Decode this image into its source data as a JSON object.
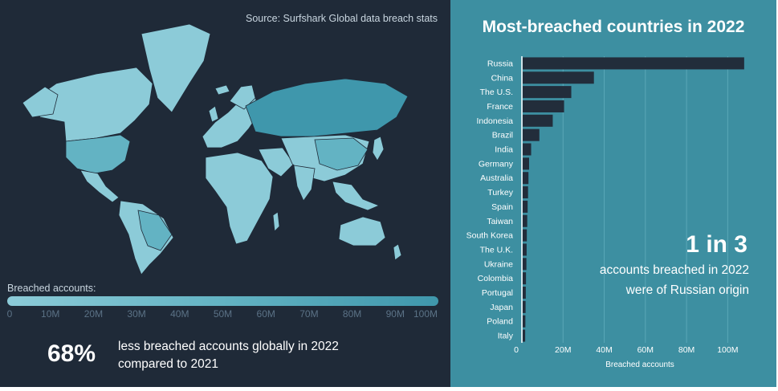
{
  "source": "Source: Surfshark Global data breach stats",
  "map": {
    "legend_label": "Breached accounts:",
    "legend_ticks": [
      "0",
      "10M",
      "20M",
      "30M",
      "40M",
      "50M",
      "60M",
      "70M",
      "80M",
      "90M",
      "100M"
    ],
    "colors": {
      "ocean": "#1f2a38",
      "land_low": "#8ccbd8",
      "land_mid": "#63b3c3",
      "land_high": "#3f97ac",
      "border": "#1f2a38"
    }
  },
  "stat": {
    "big": "68%",
    "text": "less breached accounts globally in 2022 compared to 2021"
  },
  "callout": {
    "big": "1 in 3",
    "text": "accounts breached in 2022 were of Russian origin"
  },
  "chart_data": {
    "type": "bar",
    "orientation": "horizontal",
    "title": "Most-breached countries in 2022",
    "xlabel": "Breached accounts",
    "categories": [
      "Russia",
      "China",
      "The U.S.",
      "France",
      "Indonesia",
      "Brazil",
      "India",
      "Germany",
      "Australia",
      "Turkey",
      "Spain",
      "Taiwan",
      "South Korea",
      "The U.K.",
      "Ukraine",
      "Colombia",
      "Portugal",
      "Japan",
      "Poland",
      "Italy"
    ],
    "values": [
      108,
      35,
      24,
      20.5,
      15,
      8.5,
      4.5,
      3.5,
      3.2,
      3.0,
      2.8,
      2.6,
      2.4,
      2.3,
      2.2,
      2.0,
      1.9,
      1.8,
      1.7,
      1.6
    ],
    "xticks": [
      "0",
      "20M",
      "40M",
      "60M",
      "80M",
      "100M"
    ],
    "xtick_values": [
      0,
      20,
      40,
      60,
      80,
      100
    ],
    "xlim": [
      0,
      110
    ],
    "grid": true,
    "colors": {
      "bar": "#222d3b",
      "grid": "#5aa7b7",
      "label": "#ffffff"
    }
  }
}
